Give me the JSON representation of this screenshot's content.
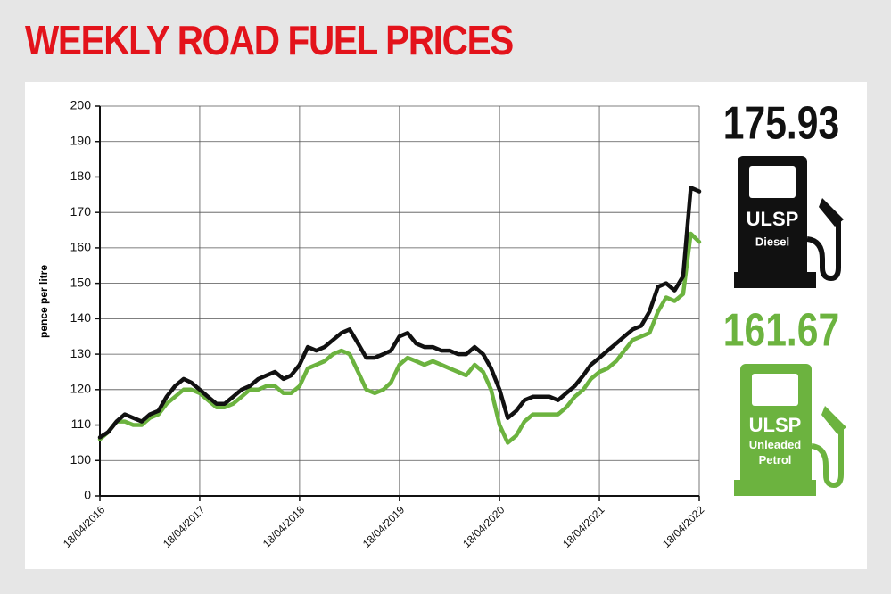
{
  "chart_data": {
    "type": "line",
    "title": "WEEKLY ROAD FUEL PRICES",
    "y_label": "pence per litre",
    "x": [
      "18/04/2016",
      "18/05/2016",
      "18/06/2016",
      "18/07/2016",
      "18/08/2016",
      "18/09/2016",
      "18/10/2016",
      "18/11/2016",
      "18/12/2016",
      "18/01/2017",
      "18/02/2017",
      "18/03/2017",
      "18/04/2017",
      "18/05/2017",
      "18/06/2017",
      "18/07/2017",
      "18/08/2017",
      "18/09/2017",
      "18/10/2017",
      "18/11/2017",
      "18/12/2017",
      "18/01/2018",
      "18/02/2018",
      "18/03/2018",
      "18/04/2018",
      "18/05/2018",
      "18/06/2018",
      "18/07/2018",
      "18/08/2018",
      "18/09/2018",
      "18/10/2018",
      "18/11/2018",
      "18/12/2018",
      "18/01/2019",
      "18/02/2019",
      "18/03/2019",
      "18/04/2019",
      "18/05/2019",
      "18/06/2019",
      "18/07/2019",
      "18/08/2019",
      "18/09/2019",
      "18/10/2019",
      "18/11/2019",
      "18/12/2019",
      "18/01/2020",
      "18/02/2020",
      "18/03/2020",
      "18/04/2020",
      "18/05/2020",
      "18/06/2020",
      "18/07/2020",
      "18/08/2020",
      "18/09/2020",
      "18/10/2020",
      "18/11/2020",
      "18/12/2020",
      "18/01/2021",
      "18/02/2021",
      "18/03/2021",
      "18/04/2021",
      "18/05/2021",
      "18/06/2021",
      "18/07/2021",
      "18/08/2021",
      "18/09/2021",
      "18/10/2021",
      "18/11/2021",
      "18/12/2021",
      "18/01/2022",
      "18/02/2022",
      "18/03/2022",
      "18/04/2022"
    ],
    "series": [
      {
        "fuel": "ULSP",
        "name": "Diesel",
        "latest": 175.93,
        "color": "#111111",
        "values": [
          106.5,
          108,
          111,
          113,
          112,
          111,
          113,
          114,
          118,
          121,
          123,
          122,
          120,
          118,
          116,
          116,
          118,
          120,
          121,
          123,
          124,
          125,
          123,
          124,
          127,
          132,
          131,
          132,
          134,
          136,
          137,
          133,
          129,
          129,
          130,
          131,
          135,
          136,
          133,
          132,
          132,
          131,
          131,
          130,
          130,
          132,
          130,
          126,
          120,
          112,
          114,
          117,
          118,
          118,
          118,
          117,
          119,
          121,
          124,
          127,
          129,
          131,
          133,
          135,
          137,
          138,
          142,
          149,
          150,
          148,
          152,
          177,
          175.93
        ]
      },
      {
        "fuel": "ULSP",
        "name": "Unleaded Petrol",
        "latest": 161.67,
        "color": "#6cb33f",
        "values": [
          106,
          108,
          111,
          111,
          110,
          110,
          112,
          113,
          116,
          118,
          120,
          120,
          119,
          117,
          115,
          115,
          116,
          118,
          120,
          120,
          121,
          121,
          119,
          119,
          121,
          126,
          127,
          128,
          130,
          131,
          130,
          125,
          120,
          119,
          120,
          122,
          127,
          129,
          128,
          127,
          128,
          127,
          126,
          125,
          124,
          127,
          125,
          120,
          110,
          105,
          107,
          111,
          113,
          113,
          113,
          113,
          115,
          118,
          120,
          123,
          125,
          126,
          128,
          131,
          134,
          135,
          136,
          142,
          146,
          145,
          147,
          164,
          161.67
        ]
      }
    ],
    "xlim": [
      "18/04/2016",
      "18/04/2022"
    ],
    "xticks": [
      "18/04/2016",
      "18/04/2017",
      "18/04/2018",
      "18/04/2019",
      "18/04/2020",
      "18/04/2021",
      "18/04/2022"
    ],
    "ylim": [
      0,
      200
    ],
    "y_break": [
      0,
      100
    ],
    "yticks": [
      0,
      100,
      110,
      120,
      130,
      140,
      150,
      160,
      170,
      180,
      190,
      200
    ],
    "grid": true
  }
}
